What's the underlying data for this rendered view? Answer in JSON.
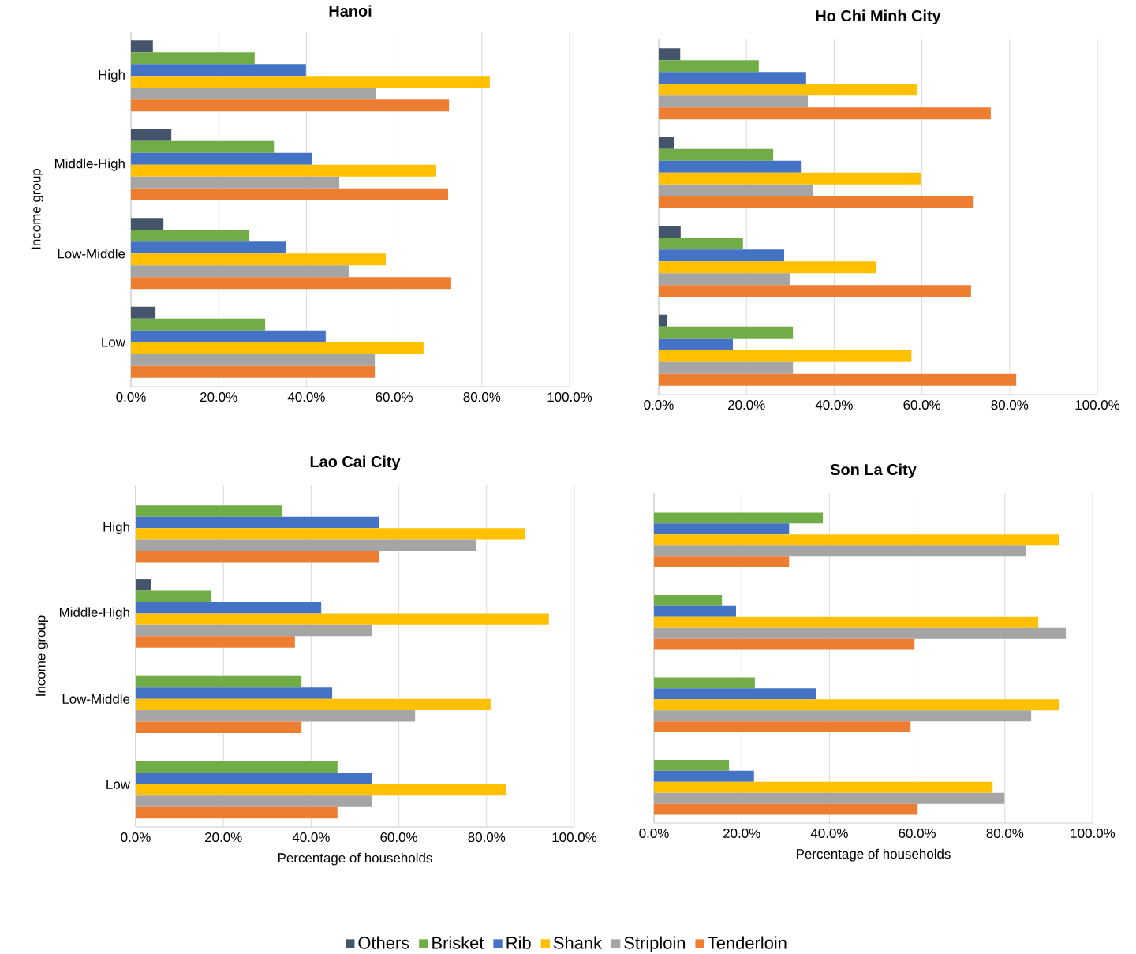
{
  "chart_data": [
    {
      "type": "bar",
      "orientation": "horizontal",
      "title": "Hanoi",
      "ylabel": "Income group",
      "categories": [
        "High",
        "Middle-High",
        "Low-Middle",
        "Low"
      ],
      "xlim": [
        0,
        100
      ],
      "xticks": [
        {
          "value": 0,
          "label": "0.0%"
        },
        {
          "value": 20,
          "label": "20.0%"
        },
        {
          "value": 40,
          "label": "40.0%"
        },
        {
          "value": 60,
          "label": "60.0%"
        },
        {
          "value": 80,
          "label": "80.0%"
        },
        {
          "value": 100,
          "label": "100.0%"
        }
      ],
      "grid": "x",
      "legend": "bottom",
      "series": [
        {
          "name": "Others",
          "color": "#44546a",
          "values": [
            5.0,
            9.2,
            7.4,
            5.6
          ]
        },
        {
          "name": "Brisket",
          "color": "#70ad47",
          "values": [
            28.2,
            32.6,
            27.0,
            30.6
          ]
        },
        {
          "name": "Rib",
          "color": "#4472c4",
          "values": [
            39.9,
            41.2,
            35.3,
            44.4
          ]
        },
        {
          "name": "Shank",
          "color": "#ffc000",
          "values": [
            81.8,
            69.6,
            58.1,
            66.7
          ]
        },
        {
          "name": "Striploin",
          "color": "#a5a5a5",
          "values": [
            55.8,
            47.5,
            49.8,
            55.6
          ]
        },
        {
          "name": "Tenderloin",
          "color": "#ed7d31",
          "values": [
            72.5,
            72.3,
            73.0,
            55.6
          ]
        }
      ]
    },
    {
      "type": "bar",
      "orientation": "horizontal",
      "title": "Ho Chi Minh City",
      "categories": [
        null,
        null,
        null,
        null
      ],
      "tick_labels": "x",
      "xlim": [
        0,
        100
      ],
      "xticks": [
        {
          "value": 0,
          "label": "0.0%"
        },
        {
          "value": 20,
          "label": "20.0%"
        },
        {
          "value": 40,
          "label": "40.0%"
        },
        {
          "value": 60,
          "label": "60.0%"
        },
        {
          "value": 80,
          "label": "80.0%"
        },
        {
          "value": 100,
          "label": "100.0%"
        }
      ],
      "grid": "x",
      "series": [
        {
          "color": "#44546a",
          "values": [
            4.9,
            3.6,
            5.0,
            1.8
          ]
        },
        {
          "color": "#70ad47",
          "values": [
            22.8,
            26.1,
            19.2,
            30.6
          ]
        },
        {
          "color": "#4472c4",
          "values": [
            33.6,
            32.4,
            28.6,
            16.9
          ]
        },
        {
          "color": "#ffc000",
          "values": [
            58.8,
            59.7,
            49.5,
            57.6
          ]
        },
        {
          "color": "#a5a5a5",
          "values": [
            34.0,
            35.1,
            30.0,
            30.6
          ]
        },
        {
          "color": "#ed7d31",
          "values": [
            75.7,
            71.8,
            71.2,
            81.5
          ]
        }
      ]
    },
    {
      "type": "bar",
      "orientation": "horizontal",
      "title": "Lao Cai City",
      "ylabel": "Income group",
      "xlabel": "Percentage of  households",
      "categories": [
        "High",
        "Middle-High",
        "Low-Middle",
        "Low"
      ],
      "xlim": [
        0,
        100
      ],
      "xticks": [
        {
          "value": 0,
          "label": "0.0%"
        },
        {
          "value": 20,
          "label": "20.0%"
        },
        {
          "value": 40,
          "label": "40.0%"
        },
        {
          "value": 60,
          "label": "60.0%"
        },
        {
          "value": 80,
          "label": "80.0%"
        },
        {
          "value": 100,
          "label": "100.0%"
        }
      ],
      "grid": "x",
      "series": [
        {
          "color": "#44546a",
          "values": [
            0,
            3.6,
            0,
            0
          ]
        },
        {
          "color": "#70ad47",
          "values": [
            33.3,
            17.3,
            37.8,
            46.0
          ]
        },
        {
          "color": "#4472c4",
          "values": [
            55.4,
            42.3,
            44.8,
            53.8
          ]
        },
        {
          "color": "#ffc000",
          "values": [
            88.8,
            94.2,
            80.9,
            84.5
          ]
        },
        {
          "color": "#a5a5a5",
          "values": [
            77.7,
            53.8,
            63.7,
            53.8
          ]
        },
        {
          "color": "#ed7d31",
          "values": [
            55.4,
            36.3,
            37.8,
            46.0
          ]
        }
      ]
    },
    {
      "type": "bar",
      "orientation": "horizontal",
      "title": "Son La City",
      "xlabel": "Percentage of households",
      "categories": [
        null,
        null,
        null,
        null
      ],
      "tick_labels": "x",
      "xlim": [
        0,
        100
      ],
      "xticks": [
        {
          "value": 0,
          "label": "0.0%"
        },
        {
          "value": 20,
          "label": "20.0%"
        },
        {
          "value": 40,
          "label": "40.0%"
        },
        {
          "value": 60,
          "label": "60.0%"
        },
        {
          "value": 80,
          "label": "80.0%"
        },
        {
          "value": 100,
          "label": "100.0%"
        }
      ],
      "grid": "x",
      "series": [
        {
          "color": "#44546a",
          "values": [
            0,
            0,
            0,
            0
          ]
        },
        {
          "color": "#70ad47",
          "values": [
            38.5,
            15.5,
            23.0,
            17.1
          ]
        },
        {
          "color": "#4472c4",
          "values": [
            30.8,
            18.7,
            36.9,
            22.8
          ]
        },
        {
          "color": "#ffc000",
          "values": [
            92.3,
            87.6,
            92.3,
            77.2
          ]
        },
        {
          "color": "#a5a5a5",
          "values": [
            84.7,
            93.9,
            86.0,
            79.9
          ]
        },
        {
          "color": "#ed7d31",
          "values": [
            30.8,
            59.4,
            58.5,
            60.1
          ]
        }
      ]
    }
  ]
}
